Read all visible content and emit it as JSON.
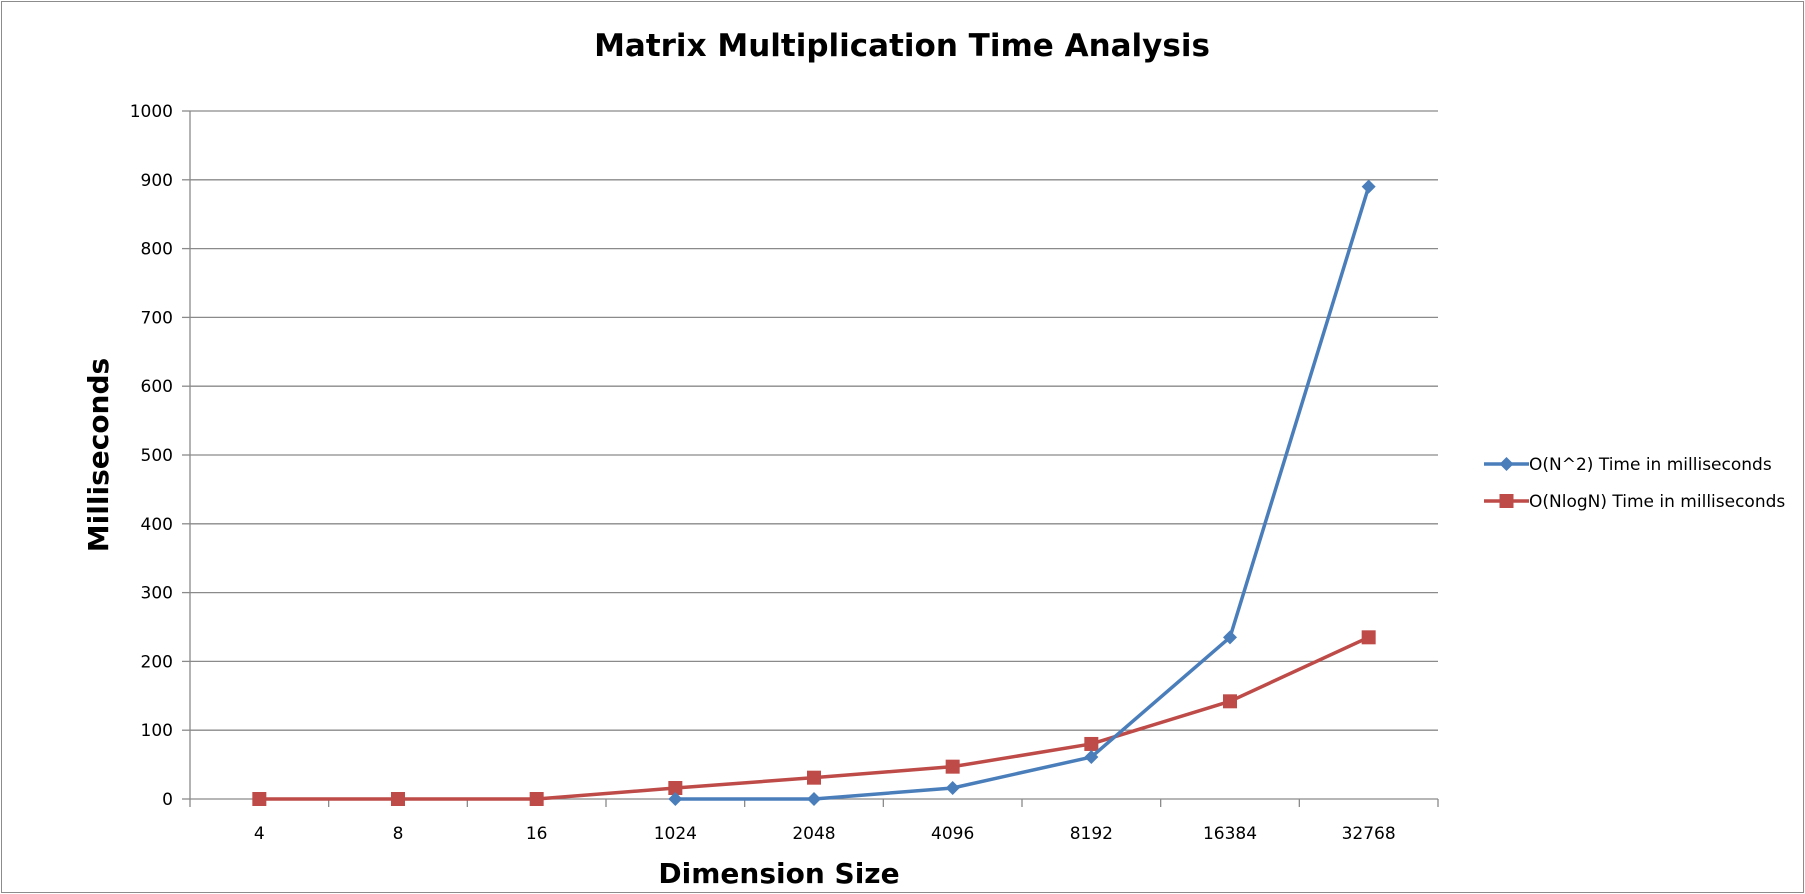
{
  "chart_data": {
    "type": "line",
    "title": "Matrix Multiplication Time Analysis",
    "xlabel": "Dimension Size",
    "ylabel": "Milliseconds",
    "categories": [
      "4",
      "8",
      "16",
      "1024",
      "2048",
      "4096",
      "8192",
      "16384",
      "32768"
    ],
    "ylim": [
      0,
      1000
    ],
    "yticks": [
      0,
      100,
      200,
      300,
      400,
      500,
      600,
      700,
      800,
      900,
      1000
    ],
    "y_tick_labels": [
      "0",
      "100",
      "200",
      "300",
      "400",
      "500",
      "600",
      "700",
      "800",
      "900",
      "1000"
    ],
    "grid": true,
    "legend_position": "right",
    "series": [
      {
        "name": "O(N^2) Time in milliseconds",
        "color": "#4a7ebb",
        "marker": "diamond",
        "values": [
          null,
          null,
          null,
          0,
          0,
          16,
          61,
          235,
          890
        ]
      },
      {
        "name": "O(NlogN) Time in milliseconds",
        "color": "#be4b48",
        "marker": "square",
        "values": [
          0,
          0,
          0,
          16,
          31,
          47,
          80,
          142,
          235
        ]
      }
    ]
  }
}
